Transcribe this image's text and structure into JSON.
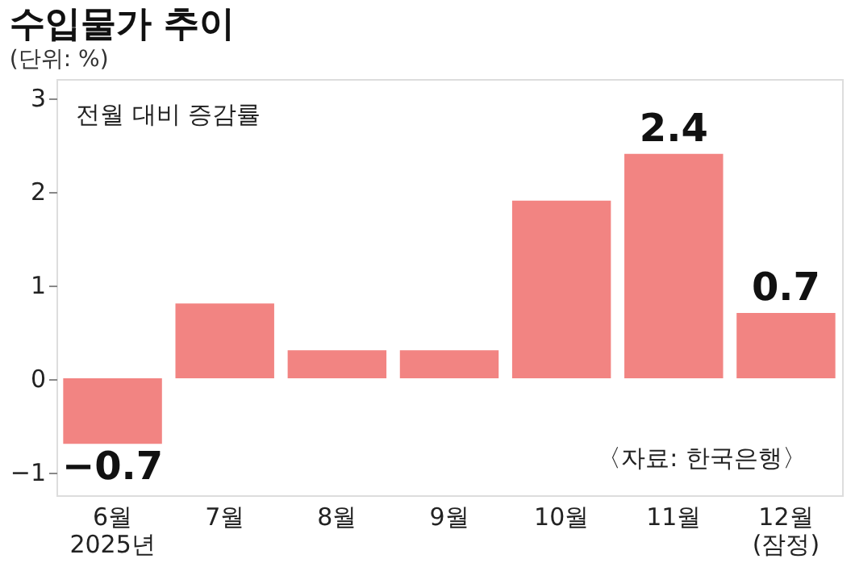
{
  "chart_data": {
    "type": "bar",
    "title": "수입물가 추이",
    "subtitle": "(단위: %)",
    "categories": [
      "6월\n2025년",
      "7월",
      "8월",
      "9월",
      "10월",
      "11월",
      "12월\n(잠정)"
    ],
    "values": [
      -0.7,
      0.8,
      0.3,
      0.3,
      1.9,
      2.4,
      0.7
    ],
    "value_labels": [
      "−0.7",
      null,
      null,
      null,
      null,
      "2.4",
      "0.7"
    ],
    "color": "#f28482",
    "ylim": [
      -1.25,
      3.2
    ],
    "yticks": [
      {
        "value": -1,
        "label": "−1"
      },
      0,
      1,
      2,
      3
    ],
    "grid": false,
    "annotations": [
      "전월 대비 증감률",
      "〈자료: 한국은행〉"
    ]
  }
}
